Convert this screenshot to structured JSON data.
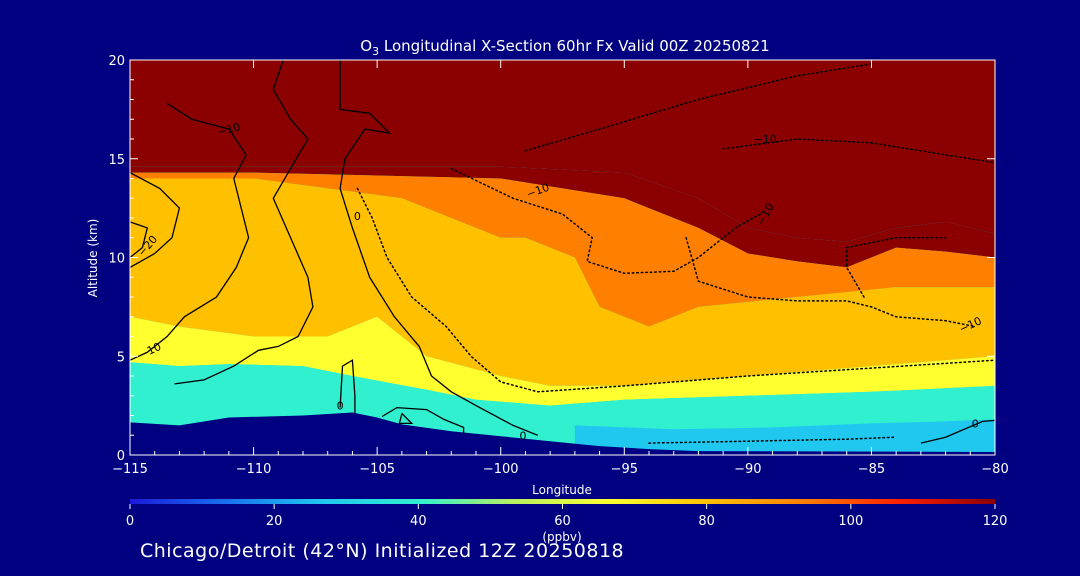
{
  "chart_data": {
    "type": "heatmap",
    "title_prefix": "O",
    "title_subscript": "3",
    "title_rest": " Longitudinal X-Section 60hr  Fx Valid 00Z 20250821",
    "xlabel": "Longitude",
    "ylabel": "Altitude (km)",
    "xlim": [
      -115,
      -80
    ],
    "ylim": [
      0,
      20
    ],
    "x_ticks": [
      -115,
      -110,
      -105,
      -100,
      -95,
      -90,
      -85,
      -80
    ],
    "x_tick_labels": [
      "−115",
      "−110",
      "−105",
      "−100",
      "−95",
      "−90",
      "−85",
      "−80"
    ],
    "y_ticks": [
      0,
      5,
      10,
      15,
      20
    ],
    "y_tick_labels": [
      "0",
      "5",
      "10",
      "15",
      "20"
    ],
    "colorbar": {
      "min": 0,
      "max": 120,
      "ticks": [
        0,
        20,
        40,
        60,
        80,
        100,
        120
      ],
      "tick_labels": [
        "0",
        "20",
        "40",
        "60",
        "80",
        "100",
        "120"
      ],
      "units": "(ppbv)",
      "colors": [
        "#1a1ad8",
        "#1870f0",
        "#20c8f0",
        "#30f0d0",
        "#b8f060",
        "#ffff30",
        "#ffc000",
        "#ff8000",
        "#ff2000",
        "#8b0000"
      ]
    },
    "fill_regions": [
      {
        "name": "stratosphere-top",
        "value": 125,
        "points": [
          [
            -115,
            20
          ],
          [
            -80,
            20
          ],
          [
            -80,
            11.2
          ],
          [
            -82,
            11.8
          ],
          [
            -84,
            11.5
          ],
          [
            -86,
            10.8
          ],
          [
            -88,
            11
          ],
          [
            -90,
            11.5
          ],
          [
            -92,
            13
          ],
          [
            -95,
            14.3
          ],
          [
            -100,
            14.6
          ],
          [
            -105,
            14.6
          ],
          [
            -110,
            14.6
          ],
          [
            -115,
            14.6
          ]
        ]
      },
      {
        "name": "upper-red-band",
        "value": 108,
        "points": [
          [
            -115,
            14.6
          ],
          [
            -100,
            14.6
          ],
          [
            -95,
            14.3
          ],
          [
            -92,
            13
          ],
          [
            -90,
            11.5
          ],
          [
            -88,
            11
          ],
          [
            -86,
            10.8
          ],
          [
            -84,
            11.5
          ],
          [
            -82,
            11.8
          ],
          [
            -80,
            11.2
          ],
          [
            -80,
            10
          ],
          [
            -82,
            10.3
          ],
          [
            -84,
            10.5
          ],
          [
            -86,
            9.5
          ],
          [
            -88,
            9.8
          ],
          [
            -90,
            10.2
          ],
          [
            -92,
            11.5
          ],
          [
            -95,
            13
          ],
          [
            -100,
            14
          ],
          [
            -110,
            14.3
          ],
          [
            -115,
            14.3
          ]
        ]
      },
      {
        "name": "orange-band",
        "value": 92,
        "points": [
          [
            -115,
            14.3
          ],
          [
            -110,
            14.3
          ],
          [
            -100,
            14
          ],
          [
            -95,
            13
          ],
          [
            -92,
            11.5
          ],
          [
            -90,
            10.2
          ],
          [
            -88,
            9.8
          ],
          [
            -86,
            9.5
          ],
          [
            -84,
            10.5
          ],
          [
            -82,
            10.3
          ],
          [
            -80,
            10
          ],
          [
            -80,
            8.5
          ],
          [
            -84,
            8.5
          ],
          [
            -88,
            8
          ],
          [
            -92,
            7.5
          ],
          [
            -94,
            6.5
          ],
          [
            -96,
            7.5
          ],
          [
            -97,
            10
          ],
          [
            -99,
            11
          ],
          [
            -100,
            11
          ],
          [
            -104,
            13
          ],
          [
            -110,
            14
          ],
          [
            -115,
            14
          ]
        ]
      },
      {
        "name": "yellow-band",
        "value": 74,
        "points": [
          [
            -115,
            14
          ],
          [
            -110,
            14
          ],
          [
            -104,
            13
          ],
          [
            -100,
            11
          ],
          [
            -99,
            11
          ],
          [
            -97,
            10
          ],
          [
            -96,
            7.5
          ],
          [
            -94,
            6.5
          ],
          [
            -92,
            7.5
          ],
          [
            -88,
            8
          ],
          [
            -84,
            8.5
          ],
          [
            -80,
            8.5
          ],
          [
            -80,
            5
          ],
          [
            -85,
            4.5
          ],
          [
            -90,
            4
          ],
          [
            -95,
            3.5
          ],
          [
            -98,
            3.5
          ],
          [
            -100,
            4
          ],
          [
            -103,
            5
          ],
          [
            -105,
            7
          ],
          [
            -107,
            6
          ],
          [
            -110,
            6
          ],
          [
            -113,
            6.5
          ],
          [
            -115,
            7
          ]
        ]
      },
      {
        "name": "green-band",
        "value": 62,
        "points": [
          [
            -115,
            7
          ],
          [
            -113,
            6.5
          ],
          [
            -110,
            6
          ],
          [
            -107,
            6
          ],
          [
            -105,
            7
          ],
          [
            -103,
            5
          ],
          [
            -100,
            4
          ],
          [
            -98,
            3.5
          ],
          [
            -95,
            3.5
          ],
          [
            -90,
            4
          ],
          [
            -85,
            4.5
          ],
          [
            -80,
            5
          ],
          [
            -80,
            3.5
          ],
          [
            -85,
            3.2
          ],
          [
            -90,
            3
          ],
          [
            -95,
            2.8
          ],
          [
            -98,
            2.5
          ],
          [
            -101,
            2.8
          ],
          [
            -103,
            3.3
          ],
          [
            -106,
            4
          ],
          [
            -108,
            4.5
          ],
          [
            -111,
            4.6
          ],
          [
            -113,
            4.5
          ],
          [
            -115,
            4.7
          ]
        ]
      },
      {
        "name": "cyan-band",
        "value": 47,
        "points": [
          [
            -115,
            4.7
          ],
          [
            -113,
            4.5
          ],
          [
            -111,
            4.6
          ],
          [
            -108,
            4.5
          ],
          [
            -106,
            4
          ],
          [
            -103,
            3.3
          ],
          [
            -101,
            2.8
          ],
          [
            -98,
            2.5
          ],
          [
            -95,
            2.8
          ],
          [
            -90,
            3
          ],
          [
            -85,
            3.2
          ],
          [
            -80,
            3.5
          ],
          [
            -80,
            0
          ],
          [
            -115,
            0
          ]
        ]
      },
      {
        "name": "lower-blue-band",
        "value": 28,
        "points": [
          [
            -97,
            1.5
          ],
          [
            -93,
            1.3
          ],
          [
            -89,
            1.4
          ],
          [
            -85,
            1.6
          ],
          [
            -82,
            1.7
          ],
          [
            -80,
            1.8
          ],
          [
            -80,
            0
          ],
          [
            -97,
            0
          ]
        ]
      }
    ],
    "terrain": [
      [
        -115,
        1.65
      ],
      [
        -113,
        1.5
      ],
      [
        -111,
        1.9
      ],
      [
        -108,
        2
      ],
      [
        -106,
        2.15
      ],
      [
        -105,
        1.9
      ],
      [
        -104,
        1.55
      ],
      [
        -102,
        1.2
      ],
      [
        -100,
        0.95
      ],
      [
        -98,
        0.7
      ],
      [
        -96,
        0.45
      ],
      [
        -94,
        0.3
      ],
      [
        -92,
        0.2
      ],
      [
        -80,
        0.15
      ],
      [
        -80,
        0
      ],
      [
        -115,
        0
      ]
    ],
    "contours": [
      {
        "style": "solid",
        "points": [
          [
            -106.5,
            20
          ],
          [
            -106.5,
            17.5
          ],
          [
            -105.3,
            17.3
          ],
          [
            -104.5,
            16.3
          ],
          [
            -105.5,
            16.5
          ],
          [
            -106.3,
            15
          ],
          [
            -106.5,
            13.5
          ],
          [
            -106,
            11.5
          ],
          [
            -105.3,
            9
          ],
          [
            -104.3,
            7
          ],
          [
            -103.3,
            5.5
          ],
          [
            -102.8,
            4
          ],
          [
            -102,
            3.2
          ],
          [
            -101,
            2.5
          ],
          [
            -99.5,
            1.5
          ],
          [
            -98.5,
            1
          ]
        ]
      },
      {
        "style": "solid",
        "points": [
          [
            -108.8,
            20
          ],
          [
            -109.2,
            18.5
          ],
          [
            -108.5,
            17
          ],
          [
            -107.8,
            16
          ],
          [
            -108.5,
            14.5
          ],
          [
            -109.2,
            13
          ],
          [
            -108.5,
            11
          ],
          [
            -107.8,
            9
          ],
          [
            -107.6,
            7.5
          ],
          [
            -108.2,
            6
          ],
          [
            -109,
            5.5
          ],
          [
            -109.8,
            5.3
          ],
          [
            -110.8,
            4.5
          ],
          [
            -112,
            3.8
          ],
          [
            -113.2,
            3.6
          ]
        ]
      },
      {
        "style": "solid",
        "points": [
          [
            -113.5,
            17.8
          ],
          [
            -112.5,
            17
          ],
          [
            -111,
            16.5
          ],
          [
            -110.3,
            15.2
          ],
          [
            -110.8,
            14
          ],
          [
            -110.5,
            12.5
          ],
          [
            -110.2,
            11
          ],
          [
            -110.7,
            9.5
          ],
          [
            -111.5,
            8
          ],
          [
            -112.8,
            7
          ],
          [
            -113.5,
            6
          ],
          [
            -114.3,
            5.2
          ],
          [
            -115,
            4.8
          ]
        ]
      },
      {
        "style": "solid",
        "points": [
          [
            -115,
            14.3
          ],
          [
            -113.8,
            13.5
          ],
          [
            -113,
            12.5
          ],
          [
            -113.3,
            11
          ],
          [
            -114,
            10.2
          ],
          [
            -115,
            9.5
          ]
        ]
      },
      {
        "style": "solid",
        "points": [
          [
            -115,
            11.8
          ],
          [
            -114.3,
            11.5
          ],
          [
            -114.5,
            10.5
          ],
          [
            -115,
            10
          ]
        ]
      },
      {
        "style": "solid",
        "points": [
          [
            -106.5,
            2.4
          ],
          [
            -106.4,
            4.5
          ],
          [
            -106,
            4.8
          ],
          [
            -105.9,
            3
          ],
          [
            -105.9,
            2.1
          ]
        ]
      },
      {
        "style": "solid",
        "points": [
          [
            -104.8,
            1.95
          ],
          [
            -104.2,
            2.4
          ],
          [
            -103,
            2.3
          ],
          [
            -102.3,
            1.8
          ],
          [
            -101.5,
            1.4
          ],
          [
            -101.5,
            1.0
          ]
        ]
      },
      {
        "style": "solid",
        "points": [
          [
            -104,
            2.1
          ],
          [
            -103.6,
            1.6
          ],
          [
            -104.1,
            1.6
          ],
          [
            -104,
            2.1
          ]
        ]
      },
      {
        "style": "solid",
        "points": [
          [
            -83,
            0.6
          ],
          [
            -82,
            0.9
          ],
          [
            -80.5,
            1.7
          ],
          [
            -80,
            1.75
          ]
        ]
      },
      {
        "style": "dotted",
        "points": [
          [
            -105.8,
            13.5
          ],
          [
            -105.2,
            12
          ],
          [
            -104.6,
            10
          ],
          [
            -103.6,
            8
          ],
          [
            -102.2,
            6.5
          ],
          [
            -101.2,
            5
          ],
          [
            -100,
            3.7
          ],
          [
            -98.5,
            3.2
          ],
          [
            -95,
            3.5
          ],
          [
            -90,
            4
          ],
          [
            -85,
            4.4
          ],
          [
            -80,
            4.8
          ]
        ]
      },
      {
        "style": "dotted",
        "points": [
          [
            -102,
            14.5
          ],
          [
            -99.5,
            13
          ],
          [
            -97.5,
            12.2
          ],
          [
            -96.3,
            11
          ],
          [
            -96.5,
            9.8
          ],
          [
            -95,
            9.2
          ],
          [
            -93,
            9.3
          ],
          [
            -92,
            10
          ],
          [
            -90.5,
            11.5
          ],
          [
            -89.5,
            12.2
          ]
        ]
      },
      {
        "style": "dotted",
        "points": [
          [
            -99,
            15.4
          ],
          [
            -96,
            16.5
          ],
          [
            -92,
            18
          ],
          [
            -88,
            19.2
          ],
          [
            -85,
            19.8
          ]
        ]
      },
      {
        "style": "dotted",
        "points": [
          [
            -91,
            15.5
          ],
          [
            -88,
            16
          ],
          [
            -85,
            15.8
          ],
          [
            -82,
            15.2
          ],
          [
            -80,
            14.8
          ]
        ]
      },
      {
        "style": "dotted",
        "points": [
          [
            -92.5,
            11
          ],
          [
            -92,
            8.8
          ],
          [
            -90,
            8
          ],
          [
            -88,
            7.8
          ],
          [
            -86,
            7.8
          ],
          [
            -85,
            7.5
          ],
          [
            -84,
            7
          ],
          [
            -82,
            6.8
          ],
          [
            -80.8,
            6.5
          ]
        ]
      },
      {
        "style": "dotted",
        "points": [
          [
            -85.3,
            8
          ],
          [
            -86,
            9.5
          ],
          [
            -86,
            10.5
          ],
          [
            -84,
            11
          ],
          [
            -82,
            11
          ]
        ]
      },
      {
        "style": "dotted",
        "points": [
          [
            -94,
            0.6
          ],
          [
            -90,
            0.7
          ],
          [
            -86,
            0.8
          ],
          [
            -84,
            0.9
          ]
        ]
      }
    ],
    "contour_labels": [
      {
        "text": "−10",
        "x": -111.0,
        "y": 16.5,
        "angle": -15
      },
      {
        "text": "−10",
        "x": -98.5,
        "y": 13.4,
        "angle": -20
      },
      {
        "text": "−10",
        "x": -89.3,
        "y": 16.0,
        "angle": 0
      },
      {
        "text": "−10",
        "x": -89.3,
        "y": 12.2,
        "angle": -60
      },
      {
        "text": "−10",
        "x": -81.0,
        "y": 6.6,
        "angle": -25
      },
      {
        "text": "−20",
        "x": -114.3,
        "y": 10.6,
        "angle": -50
      },
      {
        "text": "−10",
        "x": -114.2,
        "y": 5.3,
        "angle": -25
      },
      {
        "text": "0",
        "x": -105.8,
        "y": 12.1,
        "angle": 0
      },
      {
        "text": "0",
        "x": -106.5,
        "y": 2.5,
        "angle": 0
      },
      {
        "text": "0",
        "x": -99.1,
        "y": 1.0,
        "angle": 0
      },
      {
        "text": "0",
        "x": -80.8,
        "y": 1.6,
        "angle": 0
      }
    ]
  },
  "footer": {
    "text": "Chicago/Detroit (42°N) Initialized 12Z 20250818"
  }
}
